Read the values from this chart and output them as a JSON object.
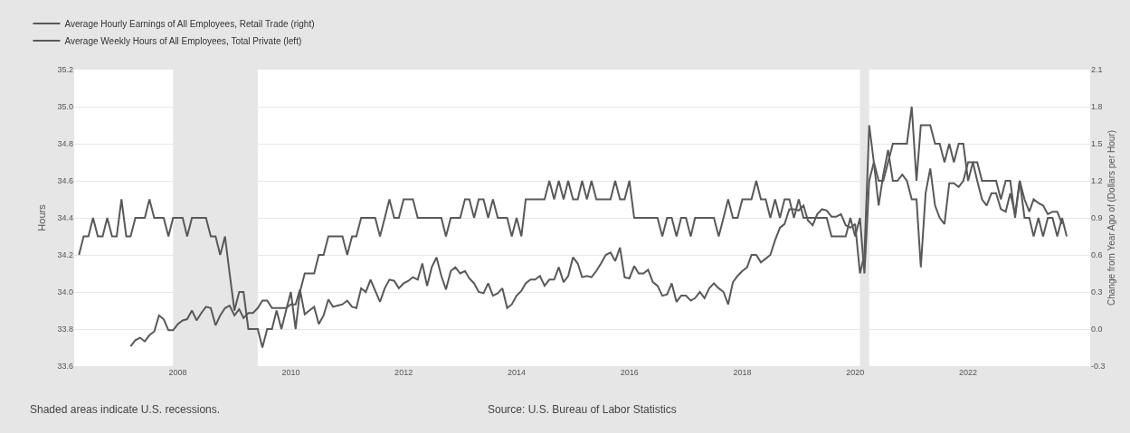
{
  "chart_data": {
    "type": "line",
    "series": [
      {
        "name": "Average Hourly Earnings of All Employees, Retail Trade (right)",
        "color": "#595959",
        "axis": "y2",
        "x": [
          "2007-03",
          "2007-04",
          "2007-05",
          "2007-06",
          "2007-07",
          "2007-08",
          "2007-09",
          "2007-10",
          "2007-11",
          "2007-12",
          "2008-01",
          "2008-02",
          "2008-03",
          "2008-04",
          "2008-05",
          "2008-06",
          "2008-07",
          "2008-08",
          "2008-09",
          "2008-10",
          "2008-11",
          "2008-12",
          "2009-01",
          "2009-02",
          "2009-03",
          "2009-04",
          "2009-05",
          "2009-06",
          "2009-07",
          "2009-08",
          "2009-09",
          "2009-10",
          "2009-11",
          "2009-12",
          "2010-01",
          "2010-02",
          "2010-03",
          "2010-04",
          "2010-05",
          "2010-06",
          "2010-07",
          "2010-08",
          "2010-09",
          "2010-10",
          "2010-11",
          "2010-12",
          "2011-01",
          "2011-02",
          "2011-03",
          "2011-04",
          "2011-05",
          "2011-06",
          "2011-07",
          "2011-08",
          "2011-09",
          "2011-10",
          "2011-11",
          "2011-12",
          "2012-01",
          "2012-02",
          "2012-03",
          "2012-04",
          "2012-05",
          "2012-06",
          "2012-07",
          "2012-08",
          "2012-09",
          "2012-10",
          "2012-11",
          "2012-12",
          "2013-01",
          "2013-02",
          "2013-03",
          "2013-04",
          "2013-05",
          "2013-06",
          "2013-07",
          "2013-08",
          "2013-09",
          "2013-10",
          "2013-11",
          "2013-12",
          "2014-01",
          "2014-02",
          "2014-03",
          "2014-04",
          "2014-05",
          "2014-06",
          "2014-07",
          "2014-08",
          "2014-09",
          "2014-10",
          "2014-11",
          "2014-12",
          "2015-01",
          "2015-02",
          "2015-03",
          "2015-04",
          "2015-05",
          "2015-06",
          "2015-07",
          "2015-08",
          "2015-09",
          "2015-10",
          "2015-11",
          "2015-12",
          "2016-01",
          "2016-02",
          "2016-03",
          "2016-04",
          "2016-05",
          "2016-06",
          "2016-07",
          "2016-08",
          "2016-09",
          "2016-10",
          "2016-11",
          "2016-12",
          "2017-01",
          "2017-02",
          "2017-03",
          "2017-04",
          "2017-05",
          "2017-06",
          "2017-07",
          "2017-08",
          "2017-09",
          "2017-10",
          "2017-11",
          "2017-12",
          "2018-01",
          "2018-02",
          "2018-03",
          "2018-04",
          "2018-05",
          "2018-06",
          "2018-07",
          "2018-08",
          "2018-09",
          "2018-10",
          "2018-11",
          "2018-12",
          "2019-01",
          "2019-02",
          "2019-03",
          "2019-04",
          "2019-05",
          "2019-06",
          "2019-07",
          "2019-08",
          "2019-09",
          "2019-10",
          "2019-11",
          "2019-12",
          "2020-01",
          "2020-02",
          "2020-03",
          "2020-04",
          "2020-05",
          "2020-06",
          "2020-07",
          "2020-08",
          "2020-09",
          "2020-10",
          "2020-11",
          "2020-12",
          "2021-01",
          "2021-02",
          "2021-03",
          "2021-04",
          "2021-05",
          "2021-06",
          "2021-07",
          "2021-08",
          "2021-09",
          "2021-10",
          "2021-11",
          "2021-12",
          "2022-01",
          "2022-02",
          "2022-03",
          "2022-04",
          "2022-05",
          "2022-06",
          "2022-07",
          "2022-08",
          "2022-09",
          "2022-10",
          "2022-11",
          "2022-12",
          "2023-01",
          "2023-02",
          "2023-03",
          "2023-04",
          "2023-05",
          "2023-06",
          "2023-07",
          "2023-08",
          "2023-09"
        ],
        "values": [
          -0.14,
          -0.09,
          -0.07,
          -0.1,
          -0.05,
          -0.02,
          0.11,
          0.08,
          -0.01,
          -0.01,
          0.04,
          0.07,
          0.08,
          0.15,
          0.07,
          0.13,
          0.18,
          0.17,
          0.03,
          0.11,
          0.17,
          0.19,
          0.11,
          0.16,
          0.09,
          0.13,
          0.13,
          0.17,
          0.23,
          0.23,
          0.17,
          0.17,
          0.17,
          0.17,
          0.2,
          0.2,
          0.32,
          0.12,
          0.15,
          0.18,
          0.04,
          0.11,
          0.24,
          0.18,
          0.19,
          0.2,
          0.23,
          0.18,
          0.17,
          0.33,
          0.3,
          0.4,
          0.31,
          0.22,
          0.33,
          0.4,
          0.39,
          0.33,
          0.37,
          0.39,
          0.42,
          0.4,
          0.53,
          0.35,
          0.5,
          0.58,
          0.43,
          0.32,
          0.47,
          0.5,
          0.45,
          0.47,
          0.41,
          0.37,
          0.3,
          0.29,
          0.37,
          0.27,
          0.29,
          0.33,
          0.17,
          0.2,
          0.27,
          0.31,
          0.37,
          0.4,
          0.4,
          0.43,
          0.35,
          0.4,
          0.4,
          0.5,
          0.38,
          0.43,
          0.58,
          0.53,
          0.42,
          0.43,
          0.42,
          0.47,
          0.53,
          0.6,
          0.62,
          0.55,
          0.66,
          0.42,
          0.41,
          0.51,
          0.45,
          0.45,
          0.48,
          0.38,
          0.35,
          0.27,
          0.28,
          0.37,
          0.22,
          0.27,
          0.27,
          0.23,
          0.25,
          0.3,
          0.25,
          0.33,
          0.37,
          0.33,
          0.3,
          0.2,
          0.38,
          0.43,
          0.47,
          0.5,
          0.6,
          0.6,
          0.54,
          0.57,
          0.6,
          0.72,
          0.82,
          0.85,
          0.97,
          0.97,
          0.96,
          1.0,
          0.88,
          0.84,
          0.93,
          0.97,
          0.96,
          0.91,
          0.91,
          0.93,
          0.84,
          0.82,
          0.85,
          0.45,
          0.6,
          1.65,
          1.35,
          1.0,
          1.25,
          1.45,
          1.2,
          1.2,
          1.25,
          1.2,
          1.05,
          1.05,
          0.5,
          1.1,
          1.3,
          1.0,
          0.9,
          0.85,
          1.18,
          1.18,
          1.15,
          1.2,
          1.35,
          1.35,
          1.2,
          1.05,
          1.0,
          1.1,
          1.1,
          0.97,
          0.95,
          1.1,
          0.93,
          1.2,
          1.05,
          0.95,
          1.05,
          1.02,
          1.0,
          0.93,
          0.95,
          0.95,
          0.85
        ]
      },
      {
        "name": "Average Weekly Hours of All Employees, Total Private (left)",
        "color": "#595959",
        "x": [
          "2006-04",
          "2006-05",
          "2006-06",
          "2006-07",
          "2006-08",
          "2006-09",
          "2006-10",
          "2006-11",
          "2006-12",
          "2007-01",
          "2007-02",
          "2007-03",
          "2007-04",
          "2007-05",
          "2007-06",
          "2007-07",
          "2007-08",
          "2007-09",
          "2007-10",
          "2007-11",
          "2007-12",
          "2008-01",
          "2008-02",
          "2008-03",
          "2008-04",
          "2008-05",
          "2008-06",
          "2008-07",
          "2008-08",
          "2008-09",
          "2008-10",
          "2008-11",
          "2008-12",
          "2009-01",
          "2009-02",
          "2009-03",
          "2009-04",
          "2009-05",
          "2009-06",
          "2009-07",
          "2009-08",
          "2009-09",
          "2009-10",
          "2009-11",
          "2009-12",
          "2010-01",
          "2010-02",
          "2010-03",
          "2010-04",
          "2010-05",
          "2010-06",
          "2010-07",
          "2010-08",
          "2010-09",
          "2010-10",
          "2010-11",
          "2010-12",
          "2011-01",
          "2011-02",
          "2011-03",
          "2011-04",
          "2011-05",
          "2011-06",
          "2011-07",
          "2011-08",
          "2011-09",
          "2011-10",
          "2011-11",
          "2011-12",
          "2012-01",
          "2012-02",
          "2012-03",
          "2012-04",
          "2012-05",
          "2012-06",
          "2012-07",
          "2012-08",
          "2012-09",
          "2012-10",
          "2012-11",
          "2012-12",
          "2013-01",
          "2013-02",
          "2013-03",
          "2013-04",
          "2013-05",
          "2013-06",
          "2013-07",
          "2013-08",
          "2013-09",
          "2013-10",
          "2013-11",
          "2013-12",
          "2014-01",
          "2014-02",
          "2014-03",
          "2014-04",
          "2014-05",
          "2014-06",
          "2014-07",
          "2014-08",
          "2014-09",
          "2014-10",
          "2014-11",
          "2014-12",
          "2015-01",
          "2015-02",
          "2015-03",
          "2015-04",
          "2015-05",
          "2015-06",
          "2015-07",
          "2015-08",
          "2015-09",
          "2015-10",
          "2015-11",
          "2015-12",
          "2016-01",
          "2016-02",
          "2016-03",
          "2016-04",
          "2016-05",
          "2016-06",
          "2016-07",
          "2016-08",
          "2016-09",
          "2016-10",
          "2016-11",
          "2016-12",
          "2017-01",
          "2017-02",
          "2017-03",
          "2017-04",
          "2017-05",
          "2017-06",
          "2017-07",
          "2017-08",
          "2017-09",
          "2017-10",
          "2017-11",
          "2017-12",
          "2018-01",
          "2018-02",
          "2018-03",
          "2018-04",
          "2018-05",
          "2018-06",
          "2018-07",
          "2018-08",
          "2018-09",
          "2018-10",
          "2018-11",
          "2018-12",
          "2019-01",
          "2019-02",
          "2019-03",
          "2019-04",
          "2019-05",
          "2019-06",
          "2019-07",
          "2019-08",
          "2019-09",
          "2019-10",
          "2019-11",
          "2019-12",
          "2020-01",
          "2020-02",
          "2020-03",
          "2020-04",
          "2020-05",
          "2020-06",
          "2020-07",
          "2020-08",
          "2020-09",
          "2020-10",
          "2020-11",
          "2020-12",
          "2021-01",
          "2021-02",
          "2021-03",
          "2021-04",
          "2021-05",
          "2021-06",
          "2021-07",
          "2021-08",
          "2021-09",
          "2021-10",
          "2021-11",
          "2021-12",
          "2022-01",
          "2022-02",
          "2022-03",
          "2022-04",
          "2022-05",
          "2022-06",
          "2022-07",
          "2022-08",
          "2022-09",
          "2022-10",
          "2022-11",
          "2022-12",
          "2023-01",
          "2023-02",
          "2023-03",
          "2023-04",
          "2023-05",
          "2023-06",
          "2023-07",
          "2023-08",
          "2023-09",
          "2023-10"
        ],
        "values": [
          34.2,
          34.3,
          34.3,
          34.4,
          34.3,
          34.3,
          34.4,
          34.3,
          34.3,
          34.5,
          34.3,
          34.3,
          34.4,
          34.4,
          34.4,
          34.5,
          34.4,
          34.4,
          34.4,
          34.3,
          34.4,
          34.4,
          34.4,
          34.3,
          34.4,
          34.4,
          34.4,
          34.4,
          34.3,
          34.3,
          34.2,
          34.3,
          34.1,
          33.9,
          34.0,
          34.0,
          33.8,
          33.8,
          33.8,
          33.7,
          33.8,
          33.8,
          33.9,
          33.8,
          33.9,
          34.0,
          33.8,
          34.0,
          34.1,
          34.1,
          34.1,
          34.2,
          34.2,
          34.3,
          34.3,
          34.3,
          34.3,
          34.2,
          34.3,
          34.3,
          34.4,
          34.4,
          34.4,
          34.4,
          34.3,
          34.4,
          34.5,
          34.4,
          34.4,
          34.5,
          34.5,
          34.5,
          34.4,
          34.4,
          34.4,
          34.4,
          34.4,
          34.4,
          34.3,
          34.4,
          34.4,
          34.4,
          34.5,
          34.5,
          34.4,
          34.5,
          34.5,
          34.4,
          34.5,
          34.4,
          34.4,
          34.4,
          34.3,
          34.4,
          34.3,
          34.5,
          34.5,
          34.5,
          34.5,
          34.5,
          34.6,
          34.5,
          34.6,
          34.5,
          34.6,
          34.5,
          34.5,
          34.6,
          34.5,
          34.6,
          34.5,
          34.5,
          34.5,
          34.5,
          34.6,
          34.5,
          34.5,
          34.6,
          34.4,
          34.4,
          34.4,
          34.4,
          34.4,
          34.4,
          34.3,
          34.4,
          34.4,
          34.3,
          34.4,
          34.4,
          34.3,
          34.4,
          34.4,
          34.4,
          34.4,
          34.4,
          34.3,
          34.4,
          34.5,
          34.4,
          34.4,
          34.5,
          34.5,
          34.5,
          34.6,
          34.5,
          34.5,
          34.4,
          34.5,
          34.4,
          34.5,
          34.5,
          34.4,
          34.5,
          34.4,
          34.4,
          34.4,
          34.4,
          34.4,
          34.4,
          34.3,
          34.3,
          34.3,
          34.3,
          34.4,
          34.3,
          34.4,
          34.1,
          34.6,
          34.7,
          34.6,
          34.6,
          34.7,
          34.8,
          34.8,
          34.8,
          34.8,
          35.0,
          34.6,
          34.9,
          34.9,
          34.9,
          34.8,
          34.8,
          34.7,
          34.8,
          34.7,
          34.8,
          34.8,
          34.6,
          34.7,
          34.7,
          34.6,
          34.6,
          34.6,
          34.6,
          34.5,
          34.6,
          34.6,
          34.4,
          34.6,
          34.4,
          34.4,
          34.3,
          34.4,
          34.3,
          34.4,
          34.4,
          34.3,
          34.4,
          34.3
        ]
      }
    ],
    "ylabel": "Hours",
    "y2label": "Change from Year Ago of (Dollars per Hour)",
    "xlim": [
      "2006-03",
      "2024-03"
    ],
    "xticks": [
      "2008",
      "2010",
      "2012",
      "2014",
      "2016",
      "2018",
      "2020",
      "2022"
    ],
    "ylim": [
      33.6,
      35.2
    ],
    "yticks": [
      33.6,
      33.8,
      {
        "value": 34,
        "label": "34.0"
      },
      34.2,
      34.4,
      34.6,
      34.8,
      {
        "value": 35,
        "label": "35.0"
      },
      35.2
    ],
    "y2lim": [
      -0.3,
      2.1
    ],
    "y2ticks": [
      -0.3,
      {
        "value": 0,
        "label": "0.0"
      },
      0.3,
      0.6,
      0.9,
      1.2,
      1.5,
      1.8,
      2.1
    ],
    "bands": [
      {
        "axis": "x",
        "from": "2007-12",
        "to": "2009-06",
        "color": "#e6e6e6"
      },
      {
        "axis": "x",
        "from": "2020-02",
        "to": "2020-04",
        "color": "#e6e6e6"
      }
    ],
    "grid": "y",
    "legend": "top left",
    "marker": "none",
    "line_style": "solid",
    "annotations": [
      "Shaded areas indicate U.S. recessions.",
      "Source: U.S. Bureau of Labor Statistics"
    ]
  }
}
